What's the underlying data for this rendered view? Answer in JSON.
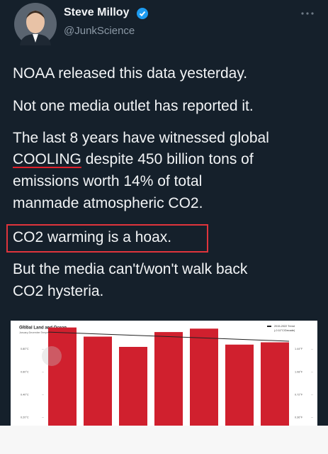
{
  "author": {
    "name": "Steve Milloy",
    "handle": "@JunkScience"
  },
  "tweet": {
    "line1": "NOAA released this data yesterday.",
    "line2": "Not one media outlet has reported it.",
    "line3": "The last 8 years have witnessed global",
    "line4_emphasis": "COOLING",
    "line4_rest": " despite 450 billion tons of",
    "line5": "emissions  worth 14% of total",
    "line6": "manmade atmospheric CO2.",
    "line7_boxed": "CO2 warming is a hoax.",
    "line8": "But the media can't/won't walk back",
    "line9": "CO2 hysteria."
  },
  "chart_data": {
    "type": "bar",
    "title": "Global Land and Ocean",
    "subtitle": "January-December Temperature Anomalies",
    "categories": [
      null,
      null,
      null,
      null,
      null,
      null,
      null
    ],
    "values": [
      0.99,
      0.91,
      0.82,
      0.95,
      0.98,
      0.84,
      0.86
    ],
    "color": "#d0202e",
    "ylim": [
      0.13,
      1.05
    ],
    "yticks": [
      {
        "value": 0.2,
        "label": "0.20°C"
      },
      {
        "value": 0.4,
        "label": "0.40°C"
      },
      {
        "value": 0.6,
        "label": "0.60°C"
      },
      {
        "value": 0.8,
        "label": "0.80°C"
      },
      {
        "value": 1.0,
        "label": "1.00°C"
      }
    ],
    "y2lim": [
      0.234,
      1.89
    ],
    "y2ticks": [
      {
        "value": 0.36,
        "label": "0.36°F"
      },
      {
        "value": 0.72,
        "label": "0.72°F"
      },
      {
        "value": 1.08,
        "label": "1.08°F"
      },
      {
        "value": 1.44,
        "label": "1.44°F"
      }
    ],
    "trend": {
      "name": "2015-2022 Trend",
      "label": "(-0.11°C/Decade)",
      "color": "#222222",
      "values": [
        0.95,
        0.87
      ]
    },
    "grid": false
  }
}
